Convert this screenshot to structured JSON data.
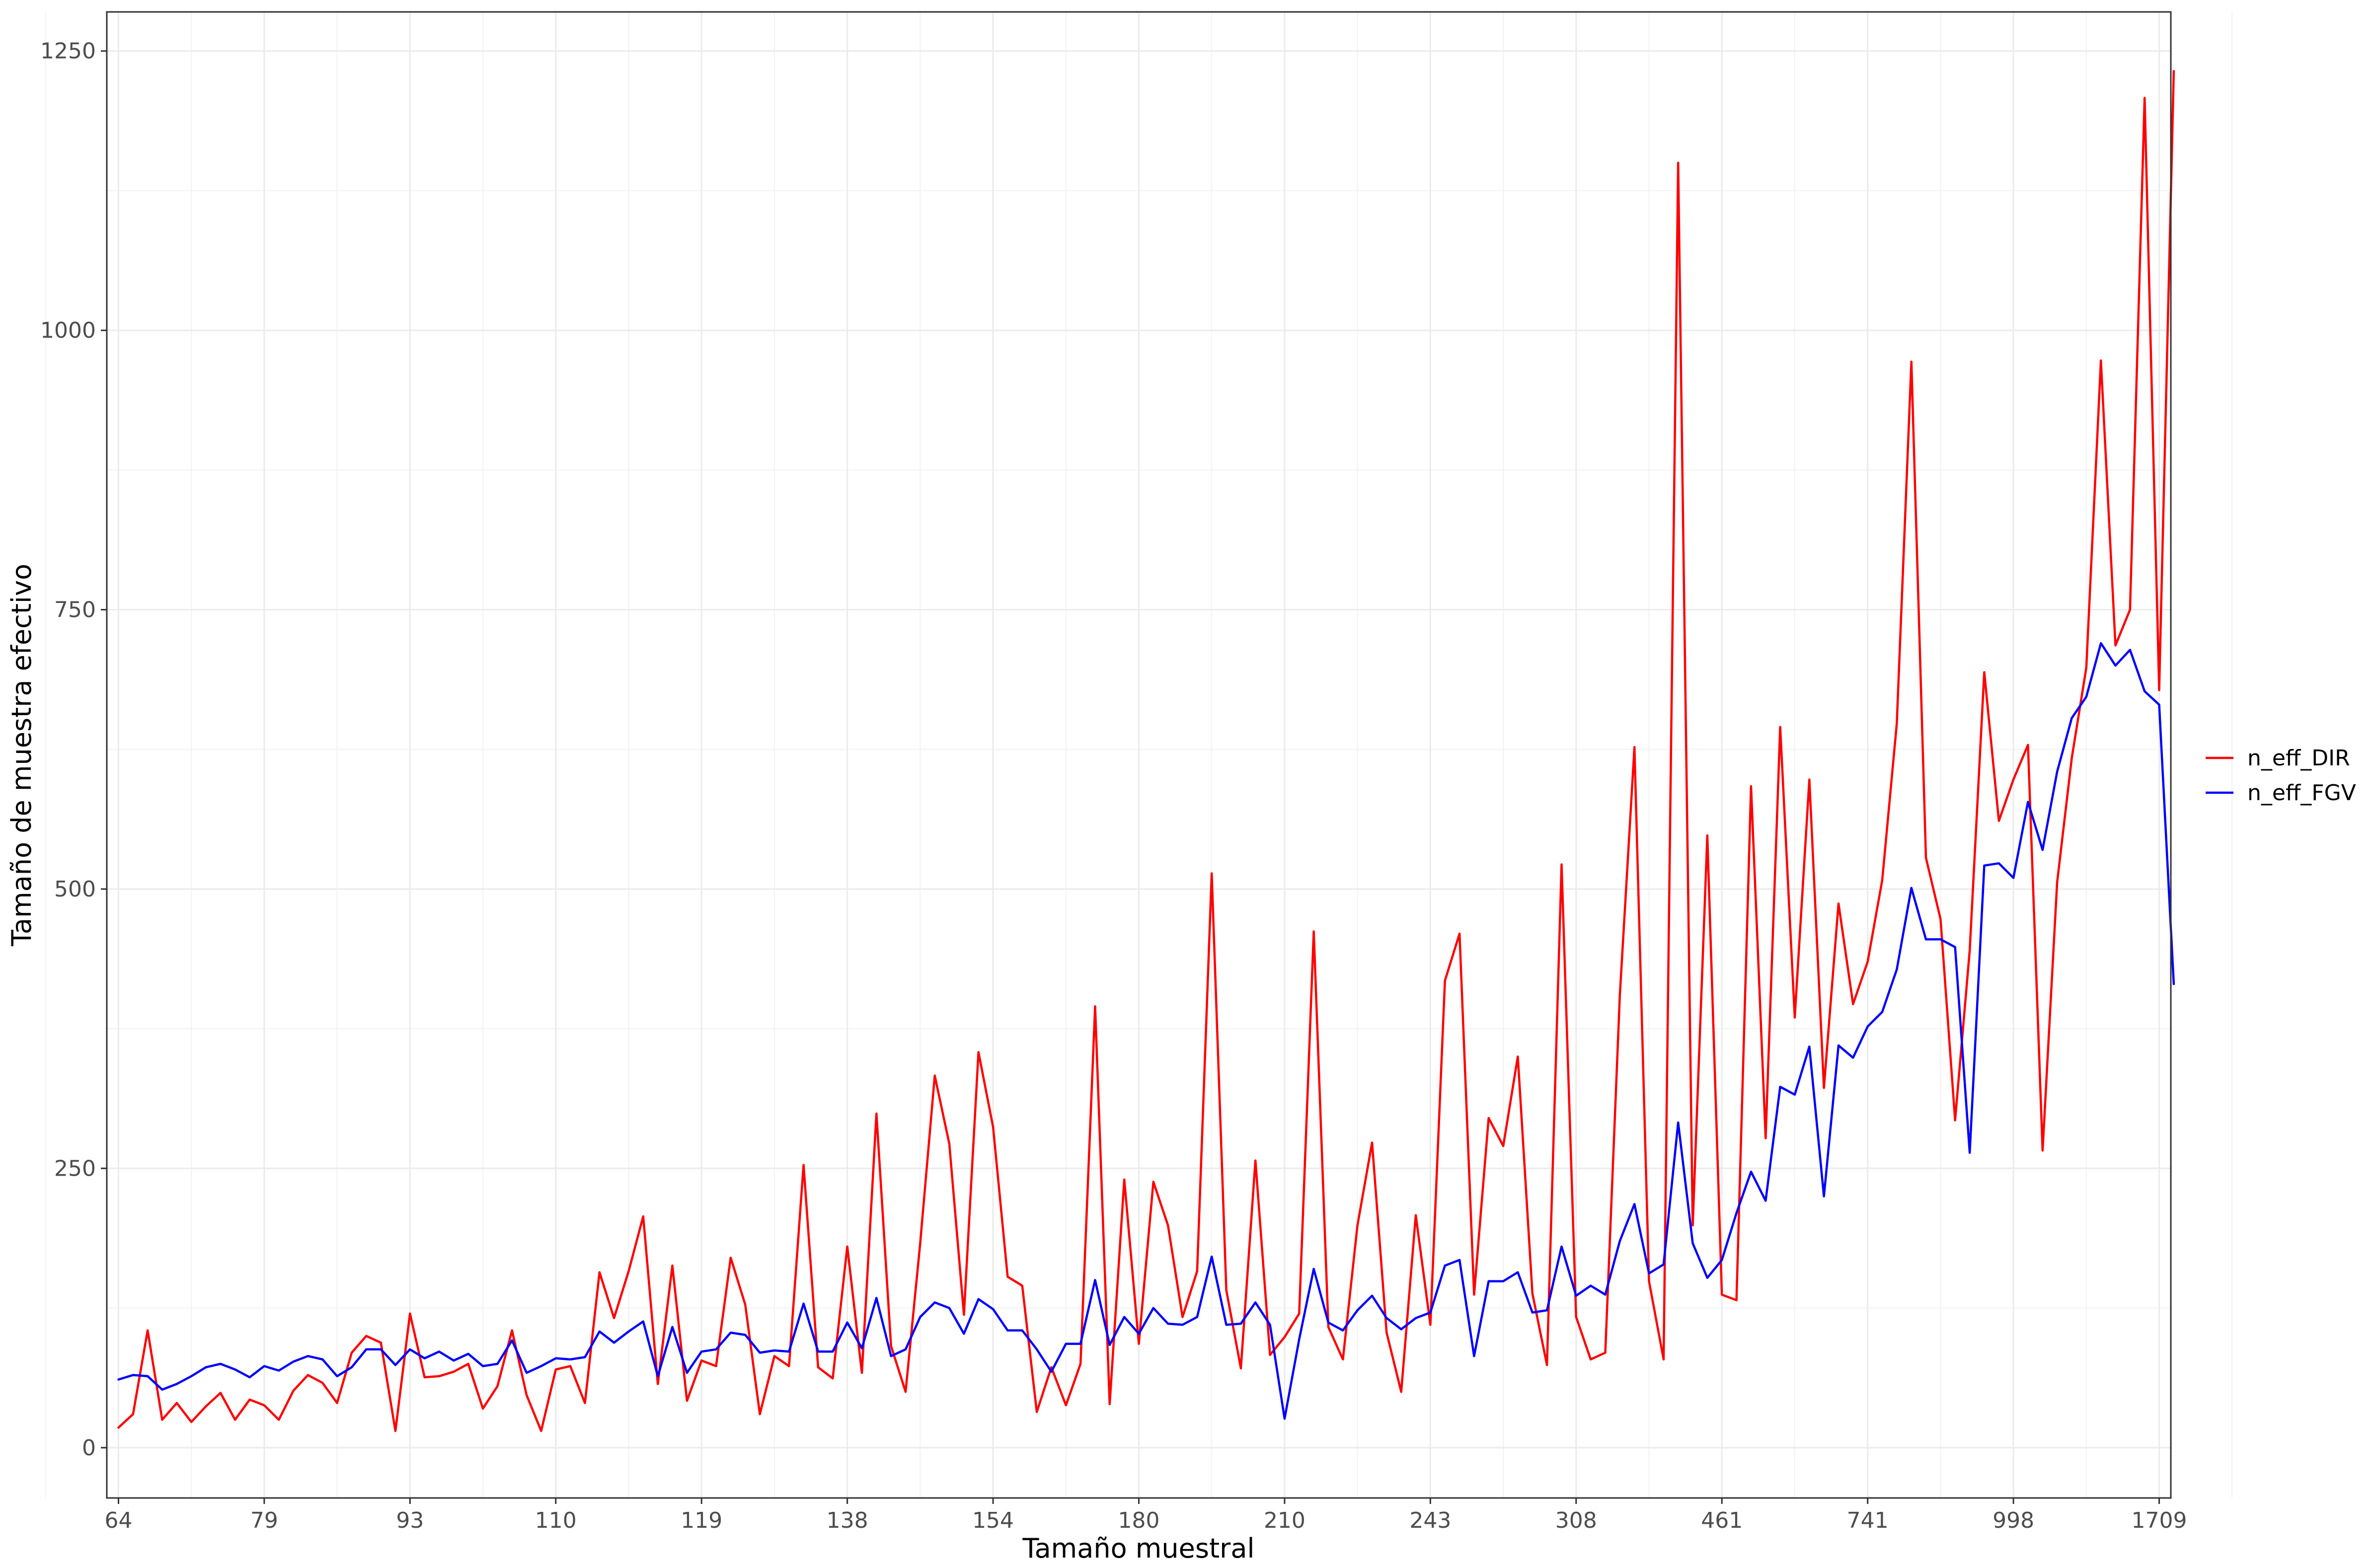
{
  "chart_data": {
    "type": "line",
    "title": "",
    "xlabel": "Tamaño muestral",
    "ylabel": "Tamaño de muestra efectivo",
    "ylim": [
      -45,
      1285
    ],
    "xlim": [
      0.2,
      141.8
    ],
    "grid": true,
    "legend_position": "right",
    "x_ticks": [
      {
        "label": "64",
        "index": 1
      },
      {
        "label": "79",
        "index": 11
      },
      {
        "label": "93",
        "index": 21
      },
      {
        "label": "110",
        "index": 31
      },
      {
        "label": "119",
        "index": 41
      },
      {
        "label": "138",
        "index": 51
      },
      {
        "label": "154",
        "index": 61
      },
      {
        "label": "180",
        "index": 71
      },
      {
        "label": "210",
        "index": 81
      },
      {
        "label": "243",
        "index": 91
      },
      {
        "label": "308",
        "index": 101
      },
      {
        "label": "461",
        "index": 111
      },
      {
        "label": "741",
        "index": 121
      },
      {
        "label": "998",
        "index": 131
      },
      {
        "label": "1709",
        "index": 141
      }
    ],
    "y_ticks": [
      0,
      250,
      500,
      750,
      1000,
      1250
    ],
    "series": [
      {
        "name": "n_eff_DIR",
        "color": "#ff0000",
        "values": [
          18,
          30,
          105,
          25,
          40,
          23,
          37,
          49,
          25,
          43,
          38,
          25,
          51,
          65,
          58,
          40,
          85,
          100,
          94,
          15,
          120,
          63,
          64,
          68,
          75,
          35,
          55,
          105,
          47,
          15,
          70,
          73,
          40,
          157,
          116,
          158,
          207,
          57,
          163,
          42,
          78,
          73,
          170,
          128,
          30,
          82,
          73,
          253,
          72,
          62,
          180,
          67,
          299,
          91,
          50,
          183,
          333,
          272,
          119,
          354,
          287,
          153,
          145,
          32,
          72,
          38,
          75,
          395,
          39,
          240,
          93,
          238,
          199,
          117,
          158,
          514,
          141,
          71,
          257,
          83,
          99,
          120,
          462,
          108,
          79,
          199,
          273,
          103,
          50,
          208,
          110,
          418,
          460,
          137,
          295,
          270,
          350,
          138,
          74,
          522,
          117,
          79,
          85,
          405,
          627,
          149,
          79,
          1150,
          199,
          548,
          137,
          132,
          592,
          277,
          645,
          385,
          598,
          322,
          487,
          397,
          435,
          508,
          648,
          972,
          528,
          473,
          293,
          445,
          694,
          561,
          598,
          629,
          266,
          506,
          617,
          698,
          973,
          718,
          750,
          1208,
          678,
          1232
        ]
      },
      {
        "name": "n_eff_FGV",
        "color": "#0000ff",
        "values": [
          61,
          65,
          64,
          52,
          57,
          64,
          72,
          75,
          70,
          63,
          73,
          69,
          77,
          82,
          79,
          64,
          72,
          88,
          88,
          74,
          88,
          80,
          86,
          78,
          84,
          73,
          75,
          96,
          67,
          73,
          80,
          79,
          81,
          104,
          94,
          104,
          113,
          64,
          108,
          67,
          86,
          88,
          103,
          101,
          85,
          87,
          86,
          129,
          86,
          86,
          112,
          89,
          134,
          82,
          88,
          117,
          130,
          125,
          102,
          133,
          124,
          105,
          105,
          88,
          68,
          93,
          93,
          150,
          92,
          117,
          102,
          125,
          111,
          110,
          117,
          171,
          110,
          111,
          130,
          110,
          26,
          97,
          160,
          112,
          105,
          123,
          136,
          116,
          106,
          116,
          121,
          163,
          168,
          82,
          149,
          149,
          157,
          121,
          123,
          180,
          136,
          145,
          137,
          185,
          218,
          156,
          164,
          291,
          183,
          152,
          168,
          210,
          247,
          221,
          323,
          316,
          359,
          225,
          360,
          349,
          377,
          390,
          428,
          501,
          455,
          455,
          448,
          264,
          521,
          523,
          510,
          578,
          535,
          605,
          653,
          672,
          720,
          700,
          714,
          677,
          665,
          415
        ]
      }
    ]
  }
}
